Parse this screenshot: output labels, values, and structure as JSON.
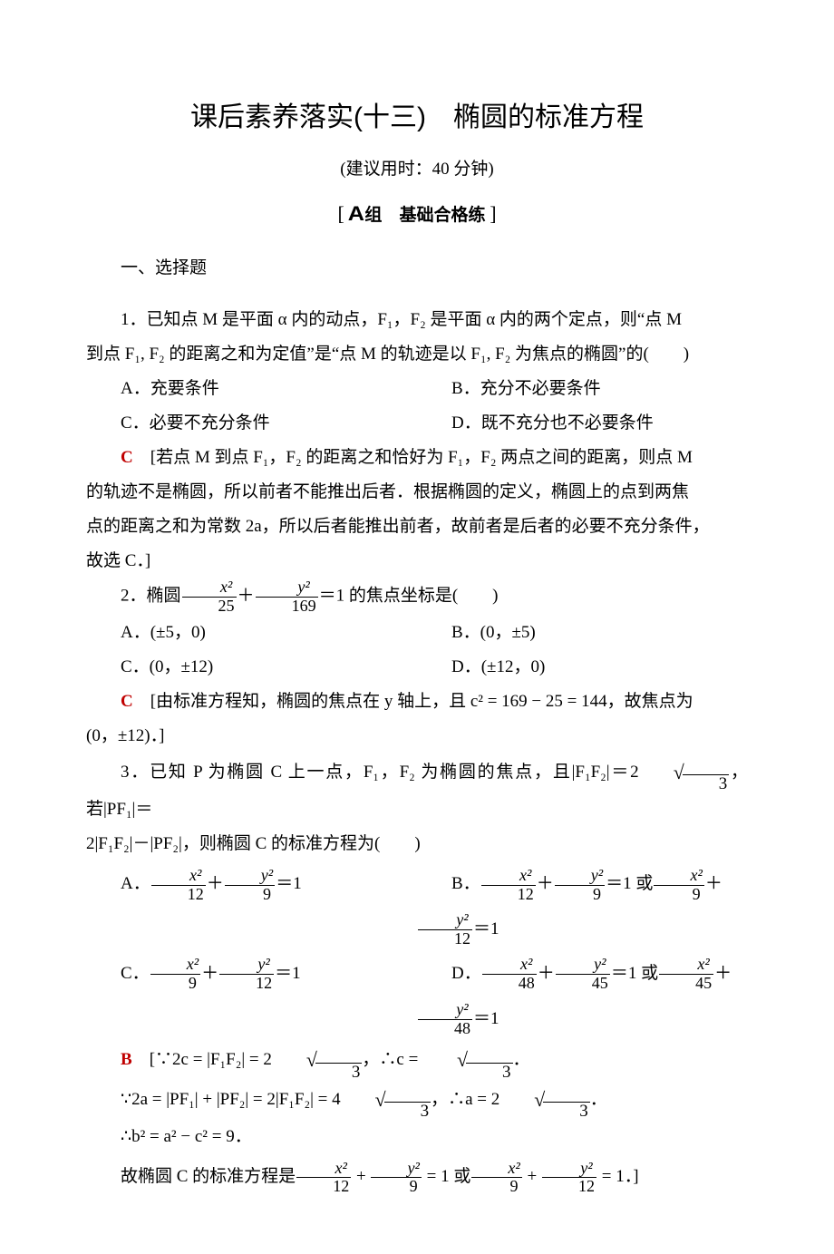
{
  "document": {
    "text_color": "#000000",
    "answer_color": "#c00000",
    "background_color": "#ffffff",
    "body_fontsize": 19,
    "title_fontsize": 30
  },
  "title": "课后素养落实(十三)　椭圆的标准方程",
  "subtitle": "(建议用时：40 分钟)",
  "group_label": {
    "open": "[",
    "letter": "A",
    "word": "组",
    "desc": "基础合格练",
    "close": "]"
  },
  "section1": "一、选择题",
  "q1": {
    "line1": "1．已知点 M 是平面 α 内的动点，F₁，F₂ 是平面 α 内的两个定点，则“点 M",
    "line2": "到点 F₁, F₂ 的距离之和为定值”是“点 M 的轨迹是以 F₁, F₂ 为焦点的椭圆”的(　　)",
    "optA": "A．充要条件",
    "optB": "B．充分不必要条件",
    "optC": "C．必要不充分条件",
    "optD": "D．既不充分也不必要条件",
    "answer": "C",
    "sol_l1": "[若点 M 到点 F₁，F₂ 的距离之和恰好为 F₁，F₂ 两点之间的距离，则点 M",
    "sol_l2": "的轨迹不是椭圆，所以前者不能推出后者．根据椭圆的定义，椭圆上的点到两焦",
    "sol_l3": "点的距离之和为常数 2a，所以后者能推出前者，故前者是后者的必要不充分条件，",
    "sol_l4": "故选 C．]"
  },
  "q2": {
    "head": "2．椭圆",
    "tail": "＝1 的焦点坐标是(　　)",
    "f1n": "x²",
    "f1d": "25",
    "f2n": "y²",
    "f2d": "169",
    "optA": "A．(±5，0)",
    "optB": "B．(0，±5)",
    "optC": "C．(0，±12)",
    "optD": "D．(±12，0)",
    "answer": "C",
    "sol_l1": "[由标准方程知，椭圆的焦点在 y 轴上，且 c² = 169 − 25 = 144，故焦点为",
    "sol_l2": "(0，±12)．]"
  },
  "q3": {
    "l1a": "3．已知 P 为椭圆 C 上一点，F₁，F₂ 为椭圆的焦点，且|F₁F₂|＝2",
    "l1b": "3",
    "l1c": "，若|PF₁|＝",
    "l2": "2|F₁F₂|－|PF₂|，则椭圆 C 的标准方程为(　　)",
    "optA_pre": "A．",
    "optB_pre": "B．",
    "optC_pre": "C．",
    "optD_pre": "D．",
    "eq_suffix": "＝1",
    "or": " 或",
    "fA1n": "x²",
    "fA1d": "12",
    "fA2n": "y²",
    "fA2d": "9",
    "fB1n": "x²",
    "fB1d": "12",
    "fB2n": "y²",
    "fB2d": "9",
    "fB3n": "x²",
    "fB3d": "9",
    "fB4n": "y²",
    "fB4d": "12",
    "fC1n": "x²",
    "fC1d": "9",
    "fC2n": "y²",
    "fC2d": "12",
    "fD1n": "x²",
    "fD1d": "48",
    "fD2n": "y²",
    "fD2d": "45",
    "fD3n": "x²",
    "fD3d": "45",
    "fD4n": "y²",
    "fD4d": "48",
    "answer": "B",
    "s1a": "[∵2c = |F₁F₂| = 2",
    "s1rad": "3",
    "s1b": "，∴c = ",
    "s1rad2": "3",
    "s1c": "．",
    "s2a": "∵2a = |PF₁| + |PF₂| = 2|F₁F₂| = 4",
    "s2rad": "3",
    "s2b": "，∴a = 2",
    "s2rad2": "3",
    "s2c": "．",
    "s3": "∴b² = a² − c² = 9．",
    "s4a": "故椭圆 C 的标准方程是",
    "s4eq": " = 1",
    "s4or": " 或",
    "s4eq2": " = 1．]",
    "fS1n": "x²",
    "fS1d": "12",
    "fS2n": "y²",
    "fS2d": "9",
    "fS3n": "x²",
    "fS3d": "9",
    "fS4n": "y²",
    "fS4d": "12"
  }
}
